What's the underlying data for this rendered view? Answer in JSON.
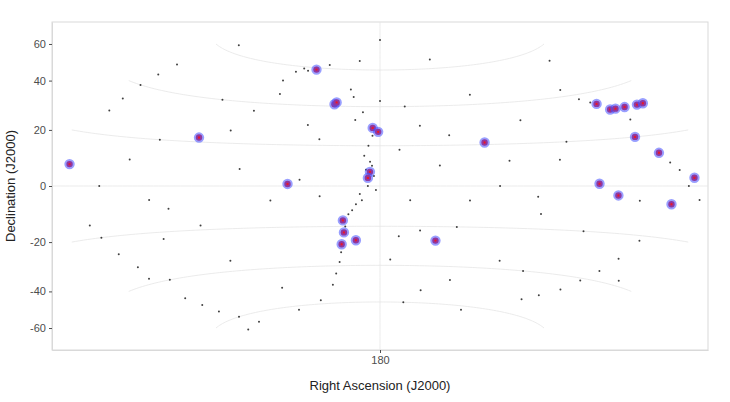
{
  "chart_data": {
    "type": "scatter",
    "x_label": "Right Ascension (J2000)",
    "y_label": "Declination (J2000)",
    "xlim": [
      360,
      0
    ],
    "ylim": [
      -90,
      90
    ],
    "xticks": [
      180
    ],
    "yticks": [
      -60,
      -40,
      -20,
      0,
      20,
      40,
      60
    ],
    "grid": true,
    "series": [
      {
        "color": "#000000",
        "marker": "point",
        "x": [
          186,
          188,
          184,
          182,
          189,
          194,
          204,
          213,
          194,
          200,
          180,
          249,
          245,
          226,
          246,
          255,
          262,
          158,
          143,
          170,
          212,
          220,
          235,
          165,
          159,
          174,
          256,
          229,
          150,
          104,
          341,
          335,
          333,
          329,
          324,
          312,
          300,
          275,
          346,
          347,
          348,
          340,
          313,
          329,
          58,
          53,
          18,
          5,
          33,
          41,
          51,
          68,
          97,
          87,
          114,
          100,
          121,
          130,
          180,
          109,
          135,
          269,
          251,
          300,
          133,
          43,
          20,
          185,
          187,
          183,
          186,
          190,
          192,
          196,
          198,
          202,
          208,
          184,
          190,
          197,
          240,
          235,
          252,
          338,
          331,
          326,
          318,
          48,
          33,
          23,
          13,
          37,
          46,
          60,
          346,
          347,
          220,
          165,
          150,
          210,
          170,
          140,
          120,
          100,
          80,
          70,
          280,
          290,
          300,
          320,
          250,
          160,
          90,
          30,
          340,
          200
        ],
        "values": [
          20,
          15,
          10,
          -2,
          -7,
          -12,
          -38,
          -50,
          33,
          49,
          43,
          57,
          59,
          62,
          45,
          36,
          26,
          30,
          25,
          18,
          23,
          3,
          -7,
          -7,
          -22,
          -37,
          -62,
          -58,
          -53,
          -62,
          -15,
          -27,
          -38,
          -48,
          -56,
          -64,
          -23,
          -18,
          29,
          40,
          50,
          63,
          11,
          0,
          43,
          38,
          6,
          -5,
          -22,
          -36,
          -46,
          -53,
          -13,
          12,
          12,
          31,
          45,
          65,
          78,
          -36,
          -7,
          -35,
          8,
          -6,
          -47,
          -6,
          -38,
          12,
          8,
          5,
          0,
          -4,
          -9,
          -14,
          -20,
          -33,
          -44,
          25,
          37,
          45,
          58,
          60,
          52,
          -20,
          -33,
          -52,
          -60,
          36,
          27,
          9,
          0,
          -30,
          -41,
          -50,
          34,
          45,
          30,
          40,
          10,
          -5,
          -25,
          -20,
          0,
          -5,
          20,
          -20,
          40,
          -10,
          20,
          -40,
          -50,
          -60,
          -40,
          55,
          -65,
          65
        ]
      },
      {
        "color": "#e8192c",
        "marker": "circle",
        "x": [
          234,
          208,
          207,
          184,
          181,
          226,
          185,
          186,
          199,
          199,
          201,
          193,
          150,
          125,
          278,
          350,
          45,
          40,
          36,
          29,
          19,
          14,
          38,
          28,
          9,
          23,
          56,
          67
        ],
        "values": [
          59,
          41,
          42,
          29,
          27,
          1,
          7,
          4,
          -17,
          -23,
          -29,
          -27,
          -27,
          21,
          22,
          8,
          35,
          32,
          32,
          32,
          32,
          32,
          20,
          13,
          3,
          -7,
          -4,
          1
        ]
      }
    ]
  }
}
